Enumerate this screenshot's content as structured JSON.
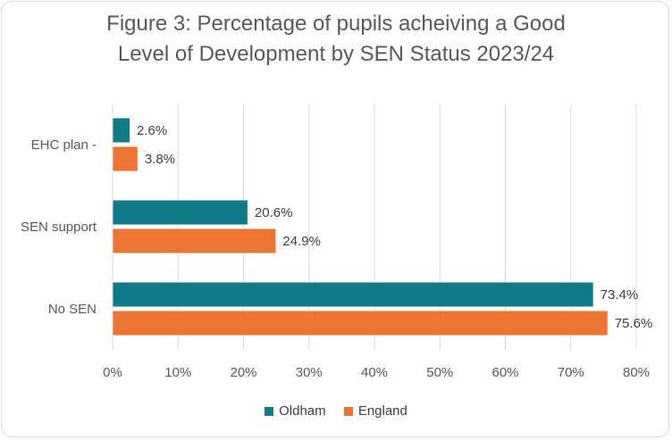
{
  "title_line1": "Figure 3: Percentage of pupils acheiving a Good",
  "title_line2": "Level of Development by SEN Status 2023/24",
  "colors": {
    "oldham": "#0e7c86",
    "england": "#ed7531",
    "grid": "#d9d9d9",
    "text": "#595959"
  },
  "legend": [
    {
      "name": "Oldham",
      "color": "#0e7c86"
    },
    {
      "name": "England",
      "color": "#ed7531"
    }
  ],
  "chart_data": {
    "type": "bar",
    "orientation": "horizontal",
    "title": "Figure 3: Percentage of pupils acheiving a Good Level of Development by SEN Status 2023/24",
    "categories": [
      "EHC plan -",
      "SEN support",
      "No SEN"
    ],
    "series": [
      {
        "name": "Oldham",
        "values": [
          2.6,
          20.6,
          73.4
        ],
        "labels": [
          "2.6%",
          "20.6%",
          "73.4%"
        ]
      },
      {
        "name": "England",
        "values": [
          3.8,
          24.9,
          75.6
        ],
        "labels": [
          "3.8%",
          "24.9%",
          "75.6%"
        ]
      }
    ],
    "xlim": [
      0,
      80
    ],
    "xticks": [
      0,
      10,
      20,
      30,
      40,
      50,
      60,
      70,
      80
    ],
    "xtick_labels": [
      "0%",
      "10%",
      "20%",
      "30%",
      "40%",
      "50%",
      "60%",
      "70%",
      "80%"
    ],
    "grid": true,
    "legend_position": "bottom"
  }
}
